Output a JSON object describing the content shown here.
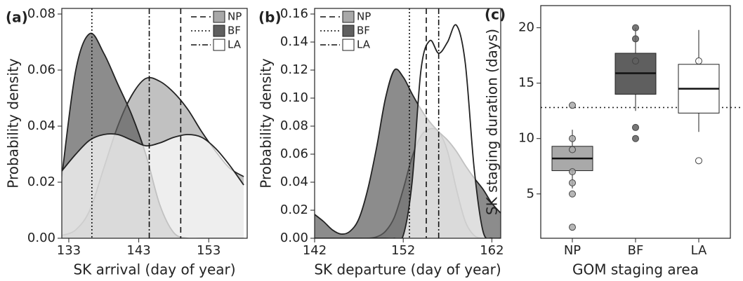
{
  "chart_data": [
    {
      "type": "density",
      "label": "(a)",
      "xlabel": "SK arrival (day of year)",
      "ylabel": "Probability density",
      "x": [
        132,
        134,
        136,
        138,
        140,
        142,
        144,
        146,
        148,
        150,
        152,
        154,
        156,
        158
      ],
      "series": [
        {
          "name": "NP",
          "color": "#a9a9a9",
          "linestyle": "dashed",
          "mean": 149,
          "values": [
            0.001,
            0.003,
            0.01,
            0.025,
            0.04,
            0.051,
            0.057,
            0.056,
            0.052,
            0.046,
            0.038,
            0.031,
            0.025,
            0.022
          ]
        },
        {
          "name": "BF",
          "color": "#5f5f5f",
          "linestyle": "dotted",
          "mean": 136.3,
          "values": [
            0.022,
            0.06,
            0.073,
            0.066,
            0.055,
            0.044,
            0.03,
            0.012,
            0.002,
            0,
            0,
            0,
            0,
            0
          ]
        },
        {
          "name": "LA",
          "color": "#ffffff",
          "linestyle": "dashdot",
          "mean": 144.5,
          "values": [
            0.024,
            0.03,
            0.035,
            0.037,
            0.037,
            0.035,
            0.033,
            0.034,
            0.036,
            0.037,
            0.036,
            0.032,
            0.026,
            0.019
          ]
        }
      ],
      "xlim": [
        132,
        158.5
      ],
      "xticks": [
        133,
        143,
        153
      ],
      "ylim": [
        0,
        0.082
      ],
      "yticks": [
        {
          "value": 0,
          "label": "0.00"
        },
        {
          "value": 0.02,
          "label": "0.02"
        },
        {
          "value": 0.04,
          "label": "0.04"
        },
        {
          "value": 0.06,
          "label": "0.06"
        },
        {
          "value": 0.08,
          "label": "0.08"
        }
      ],
      "legend": "upper right"
    },
    {
      "type": "density",
      "label": "(b)",
      "xlabel": "SK departure (day of year)",
      "ylabel": "Probability density",
      "x": [
        142,
        143,
        144,
        145,
        146,
        147,
        148,
        149,
        150,
        151,
        152,
        153,
        154,
        155,
        156,
        157,
        158,
        159,
        160,
        161,
        162,
        163
      ],
      "series": [
        {
          "name": "NP",
          "color": "#a9a9a9",
          "linestyle": "dashed",
          "mean": 154.6,
          "values": [
            0,
            0,
            0,
            0,
            0,
            0,
            0,
            0.001,
            0.005,
            0.015,
            0.035,
            0.058,
            0.073,
            0.078,
            0.076,
            0.062,
            0.035,
            0.012,
            0.002,
            0,
            0,
            0
          ]
        },
        {
          "name": "BF",
          "color": "#5f5f5f",
          "linestyle": "dotted",
          "mean": 152.7,
          "values": [
            0.017,
            0.012,
            0.006,
            0.003,
            0.005,
            0.014,
            0.035,
            0.065,
            0.1,
            0.12,
            0.115,
            0.103,
            0.092,
            0.083,
            0.076,
            0.07,
            0.062,
            0.052,
            0.043,
            0.035,
            0.025,
            0.018
          ]
        },
        {
          "name": "LA",
          "color": "#ffffff",
          "linestyle": "dashdot",
          "mean": 156,
          "values": [
            0,
            0,
            0,
            0,
            0,
            0,
            0,
            0,
            0,
            0,
            0.002,
            0.04,
            0.12,
            0.141,
            0.132,
            0.14,
            0.152,
            0.125,
            0.05,
            0.005,
            0,
            0
          ]
        }
      ],
      "xlim": [
        142,
        163
      ],
      "xticks": [
        142,
        152,
        162
      ],
      "ylim": [
        0,
        0.164
      ],
      "yticks": [
        {
          "value": 0,
          "label": "0.00"
        },
        {
          "value": 0.02,
          "label": "0.02"
        },
        {
          "value": 0.04,
          "label": "0.04"
        },
        {
          "value": 0.06,
          "label": "0.06"
        },
        {
          "value": 0.08,
          "label": "0.08"
        },
        {
          "value": 0.1,
          "label": "0.10"
        },
        {
          "value": 0.12,
          "label": "0.12"
        },
        {
          "value": 0.14,
          "label": "0.14"
        },
        {
          "value": 0.16,
          "label": "0.16"
        }
      ],
      "legend": "upper left"
    },
    {
      "type": "box",
      "label": "(c)",
      "xlabel": "GOM staging area",
      "ylabel": "SK staging duration (days)",
      "categories": [
        "NP",
        "BF",
        "LA"
      ],
      "boxes": [
        {
          "color": "#a9a9a9",
          "whisker_low": 5.5,
          "q1": 7.1,
          "median": 8.2,
          "q3": 9.3,
          "whisker_high": 10.8,
          "points": [
            13,
            10,
            9,
            7,
            6,
            5,
            2
          ]
        },
        {
          "color": "#5f5f5f",
          "whisker_low": 12.5,
          "q1": 14,
          "median": 15.9,
          "q3": 17.7,
          "whisker_high": 20,
          "points": [
            20,
            19,
            17,
            11,
            10
          ]
        },
        {
          "color": "#ffffff",
          "whisker_low": 10.6,
          "q1": 12.3,
          "median": 14.5,
          "q3": 16.7,
          "whisker_high": 19.8,
          "points": [
            17,
            8
          ]
        }
      ],
      "hline": 12.8,
      "ylim": [
        1,
        22
      ],
      "yticks": [
        5,
        10,
        15,
        20
      ]
    }
  ]
}
